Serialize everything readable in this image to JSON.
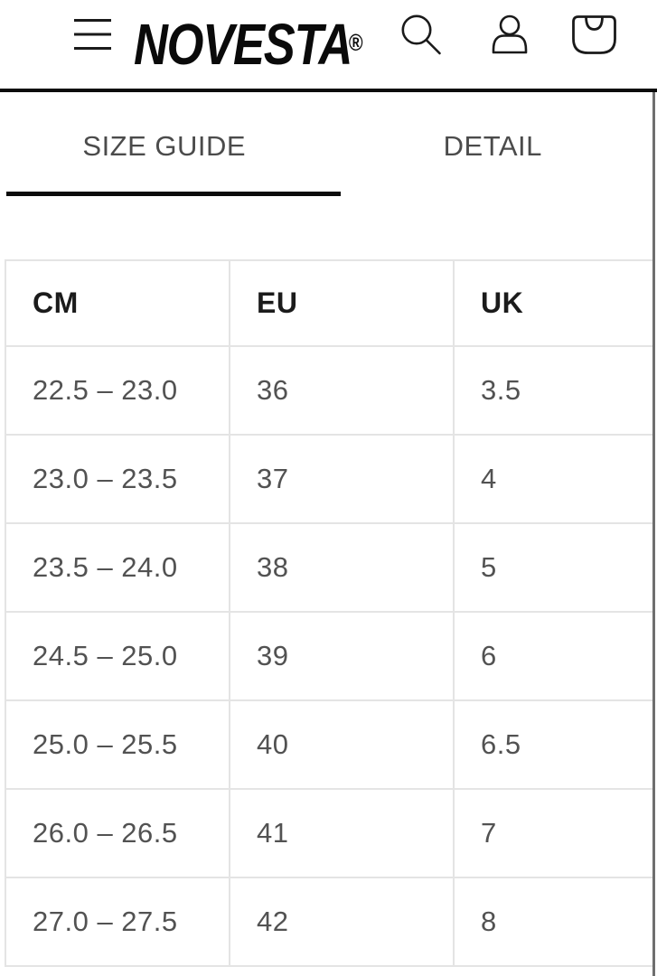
{
  "header": {
    "brand": "NOVESTA",
    "registered_mark": "®",
    "icons": [
      {
        "name": "menu-icon"
      },
      {
        "name": "search-icon"
      },
      {
        "name": "account-icon"
      },
      {
        "name": "cart-icon"
      }
    ]
  },
  "tabs": [
    {
      "label": "SIZE GUIDE",
      "active": true
    },
    {
      "label": "DETAIL",
      "active": false
    }
  ],
  "size_table": {
    "columns": [
      "CM",
      "EU",
      "UK"
    ],
    "rows": [
      [
        "22.5 – 23.0",
        "36",
        "3.5"
      ],
      [
        "23.0 – 23.5",
        "37",
        "4"
      ],
      [
        "23.5 – 24.0",
        "38",
        "5"
      ],
      [
        "24.5 – 25.0",
        "39",
        "6"
      ],
      [
        "25.0 – 25.5",
        "40",
        "6.5"
      ],
      [
        "26.0 – 26.5",
        "41",
        "7"
      ],
      [
        "27.0 – 27.5",
        "42",
        "8"
      ]
    ]
  },
  "colors": {
    "divider": "#0c0c0c",
    "tab_text": "#4b4b4b",
    "active_tab_underline": "#0c0c0c",
    "table_border": "#e4e4e4",
    "table_header_text": "#1b1b1b",
    "table_data_text": "#525252",
    "icon": "#1a1a1a",
    "background": "#ffffff"
  }
}
